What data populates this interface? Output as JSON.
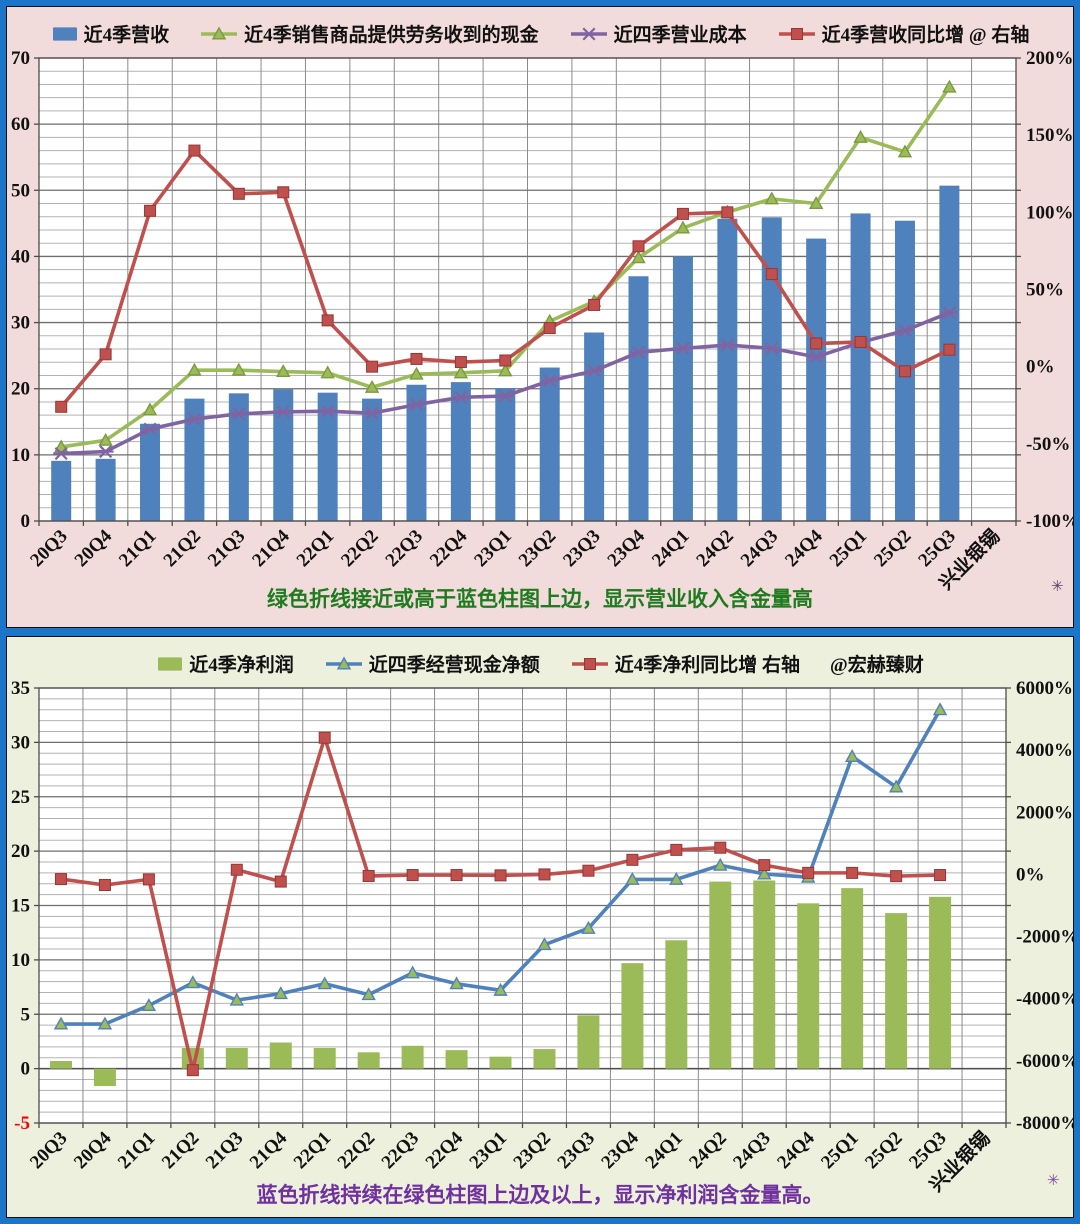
{
  "colors": {
    "bar_blue": "#4F81BD",
    "olive_green": "#9BBB59",
    "olive_dark": "#7A9A3F",
    "purple": "#8064A2",
    "red": "#C0504D",
    "top_bg": "#F2DCDB",
    "bottom_bg": "#ECF0DD",
    "frame_blue": "#1B75C8",
    "caption_green": "#1E7B1E",
    "caption_purple": "#7030A0",
    "negative_tick_red": "#FF0000"
  },
  "decorations": {
    "top_star": "✳",
    "bottom_star": "✳"
  },
  "chart_data": [
    {
      "type": "bar+line combo",
      "caption": "绿色折线接近或高于蓝色柱图上边，显示营业收入含金量高",
      "caption_color": "#1E7B1E",
      "categories": [
        "20Q3",
        "20Q4",
        "21Q1",
        "21Q2",
        "21Q3",
        "21Q4",
        "22Q1",
        "22Q2",
        "22Q3",
        "22Q4",
        "23Q1",
        "23Q2",
        "23Q3",
        "23Q4",
        "24Q1",
        "24Q2",
        "24Q3",
        "24Q4",
        "25Q1",
        "25Q2",
        "25Q3",
        "兴业银锡"
      ],
      "left_axis": {
        "min": 0,
        "max": 70,
        "major": 10,
        "minor": 2,
        "ticks": [
          "0",
          "10",
          "20",
          "30",
          "40",
          "50",
          "60",
          "70"
        ]
      },
      "right_axis": {
        "min": -100,
        "max": 200,
        "major": 50,
        "ticks": [
          "-100%",
          "-50%",
          "0%",
          "50%",
          "100%",
          "150%",
          "200%"
        ]
      },
      "grid": true,
      "legend_position": "top",
      "series": [
        {
          "name": "近4季营收",
          "type": "bar",
          "axis": "left",
          "color": "#4F81BD",
          "marker": "bar",
          "values": [
            9.1,
            9.4,
            14.7,
            18.5,
            19.3,
            19.9,
            19.4,
            18.5,
            20.6,
            21.0,
            20.1,
            23.2,
            28.5,
            37.0,
            40.0,
            45.7,
            45.9,
            42.7,
            46.5,
            45.4,
            50.7
          ]
        },
        {
          "name": "近4季销售商品提供劳务收到的现金",
          "type": "line",
          "axis": "left",
          "color": "#9BBB59",
          "marker": "triangle",
          "values": [
            11.2,
            12.2,
            16.8,
            22.8,
            22.8,
            22.6,
            22.4,
            20.2,
            22.2,
            22.4,
            22.7,
            30.2,
            33.2,
            39.8,
            44.3,
            46.7,
            48.7,
            48.0,
            58.0,
            55.8,
            65.6
          ]
        },
        {
          "name": "近四季营业成本",
          "type": "line",
          "axis": "left",
          "color": "#8064A2",
          "marker": "asterisk",
          "values": [
            10.2,
            10.5,
            13.9,
            15.4,
            16.2,
            16.5,
            16.6,
            16.3,
            17.6,
            18.7,
            18.9,
            21.2,
            22.7,
            25.5,
            26.1,
            26.6,
            26.1,
            24.8,
            27.0,
            28.8,
            31.5
          ]
        },
        {
          "name": "近4季营收同比增 @ 右轴",
          "type": "line",
          "axis": "right",
          "color": "#C0504D",
          "marker": "square",
          "values": [
            -26,
            8,
            101,
            140,
            112,
            113,
            30,
            0,
            5,
            3,
            4,
            25,
            40,
            78,
            99,
            100,
            60,
            15,
            16,
            -3,
            11
          ]
        }
      ]
    },
    {
      "type": "bar+line combo",
      "caption": "蓝色折线持续在绿色柱图上边及以上，显示净利润含金量高。",
      "caption_color": "#7030A0",
      "categories": [
        "20Q3",
        "20Q4",
        "21Q1",
        "21Q2",
        "21Q3",
        "21Q4",
        "22Q1",
        "22Q2",
        "22Q3",
        "22Q4",
        "23Q1",
        "23Q2",
        "23Q3",
        "23Q4",
        "24Q1",
        "24Q2",
        "24Q3",
        "24Q4",
        "25Q1",
        "25Q2",
        "25Q3",
        "兴业银锡"
      ],
      "left_axis": {
        "min": -5,
        "max": 35,
        "major": 5,
        "minor": 1,
        "ticks": [
          "-5",
          "0",
          "5",
          "10",
          "15",
          "20",
          "25",
          "30",
          "35"
        ],
        "negative_red": true
      },
      "right_axis": {
        "min": -8000,
        "max": 6000,
        "major": 2000,
        "ticks": [
          "-8000%",
          "-6000%",
          "-4000%",
          "-2000%",
          "0%",
          "2000%",
          "4000%",
          "6000%"
        ]
      },
      "grid": true,
      "legend_position": "top",
      "legend_extra": "@宏赫臻财",
      "series": [
        {
          "name": "近4季净利润",
          "type": "bar",
          "axis": "left",
          "color": "#9BBB59",
          "marker": "bar",
          "values": [
            0.7,
            -1.6,
            0,
            1.9,
            1.9,
            2.4,
            1.9,
            1.5,
            2.1,
            1.7,
            1.1,
            1.8,
            4.9,
            9.7,
            11.8,
            17.2,
            17.3,
            15.2,
            16.6,
            14.3,
            15.8
          ]
        },
        {
          "name": "近四季经营现金净额",
          "type": "line",
          "axis": "left",
          "color": "#4F81BD",
          "marker": "triangle",
          "values": [
            4.1,
            4.1,
            5.8,
            7.9,
            6.3,
            6.9,
            7.8,
            6.8,
            8.8,
            7.8,
            7.2,
            11.4,
            12.9,
            17.4,
            17.4,
            18.7,
            17.9,
            17.6,
            28.7,
            25.9,
            33.0
          ]
        },
        {
          "name": "近4季净利同比增 右轴",
          "type": "line",
          "axis": "right",
          "color": "#C0504D",
          "marker": "square",
          "values": [
            -150,
            -340,
            -160,
            -6300,
            150,
            -230,
            4400,
            -50,
            -20,
            -20,
            -30,
            0,
            120,
            470,
            790,
            860,
            300,
            50,
            50,
            -55,
            -20
          ]
        }
      ]
    }
  ]
}
